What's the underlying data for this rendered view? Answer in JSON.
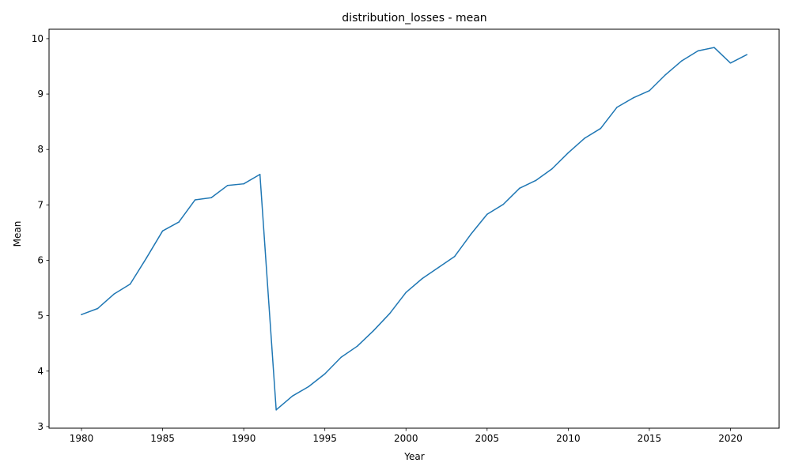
{
  "chart_data": {
    "type": "line",
    "title": "distribution_losses - mean",
    "xlabel": "Year",
    "ylabel": "Mean",
    "xlim": [
      1978,
      2023
    ],
    "ylim": [
      2.97,
      10.17
    ],
    "x_ticks": [
      1980,
      1985,
      1990,
      1995,
      2000,
      2005,
      2010,
      2015,
      2020
    ],
    "y_ticks": [
      3,
      4,
      5,
      6,
      7,
      8,
      9,
      10
    ],
    "grid": false,
    "line_color": "#1f77b4",
    "series": [
      {
        "x": [
          1980,
          1981,
          1982,
          1983,
          1984,
          1985,
          1986,
          1987,
          1988,
          1989,
          1990,
          1991,
          1992,
          1993,
          1994,
          1995,
          1996,
          1997,
          1998,
          1999,
          2000,
          2001,
          2002,
          2003,
          2004,
          2005,
          2006,
          2007,
          2008,
          2009,
          2010,
          2011,
          2012,
          2013,
          2014,
          2015,
          2016,
          2017,
          2018,
          2019,
          2020,
          2021
        ],
        "values": [
          5.02,
          5.13,
          5.39,
          5.57,
          6.04,
          6.53,
          6.69,
          7.09,
          7.13,
          7.35,
          7.38,
          7.55,
          3.3,
          3.55,
          3.72,
          3.95,
          4.25,
          4.45,
          4.73,
          5.04,
          5.42,
          5.67,
          5.87,
          6.07,
          6.47,
          6.83,
          7.01,
          7.3,
          7.44,
          7.65,
          7.94,
          8.2,
          8.38,
          8.76,
          8.93,
          9.06,
          9.35,
          9.6,
          9.78,
          9.84,
          9.56,
          9.71
        ]
      }
    ]
  }
}
